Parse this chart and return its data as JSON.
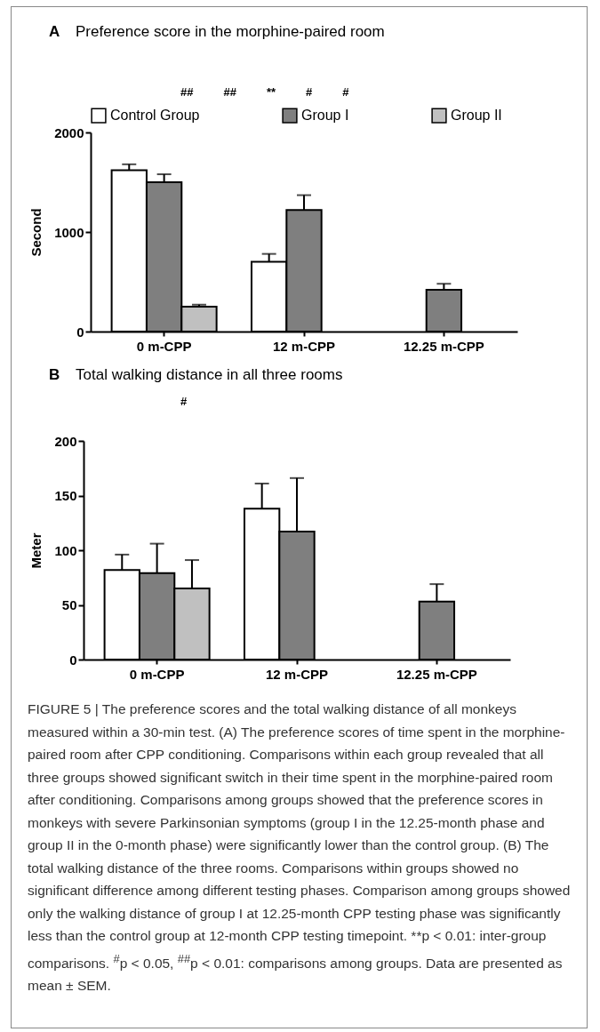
{
  "chart_data": [
    {
      "type": "bar",
      "title": "Preference score in the morphine-paired room",
      "ylabel": "Second",
      "categories": [
        "0 m-CPP",
        "12 m-CPP",
        "12.25 m-CPP"
      ],
      "series": [
        {
          "name": "Control Group",
          "color": "#ffffff",
          "values": [
            1620,
            700,
            null
          ],
          "errors": [
            60,
            80,
            null
          ]
        },
        {
          "name": "Group I",
          "color": "#7f7f7f",
          "values": [
            1500,
            1220,
            420
          ],
          "errors": [
            80,
            150,
            60
          ]
        },
        {
          "name": "Group II",
          "color": "#c0c0c0",
          "values": [
            250,
            null,
            null
          ],
          "errors": [
            20,
            null,
            null
          ]
        }
      ],
      "ylim": [
        0,
        2000
      ],
      "yticks": [
        0,
        1000,
        2000
      ],
      "legend": "top",
      "annotations": [
        "A",
        "##",
        "##",
        "**",
        "#",
        "#"
      ]
    },
    {
      "type": "bar",
      "title": "Total walking distance in all three rooms",
      "ylabel": "Meter",
      "categories": [
        "0 m-CPP",
        "12 m-CPP",
        "12.25 m-CPP"
      ],
      "series": [
        {
          "color": "#ffffff",
          "values": [
            82,
            138,
            null
          ],
          "errors": [
            14,
            23,
            null
          ]
        },
        {
          "color": "#7f7f7f",
          "values": [
            79,
            117,
            53
          ],
          "errors": [
            27,
            49,
            16
          ]
        },
        {
          "color": "#c0c0c0",
          "values": [
            65,
            null,
            null
          ],
          "errors": [
            26,
            null,
            null
          ]
        }
      ],
      "ylim": [
        0,
        200
      ],
      "yticks": [
        0,
        50,
        100,
        150,
        200
      ],
      "annotations": [
        "B",
        "#",
        "FIGURE 5 | The preference scores and the total walking distance of all monkeys measured within a 30-min test. (A) The preference scores of time spent in the morphine-paired room after CPP conditioning. Comparisons within each group revealed that all three groups showed significant switch in their time spent in the morphine-paired room after conditioning. Comparisons among groups showed that the preference scores in monkeys with severe Parkinsonian symptoms (group I in the 12.25-month phase and group II in the 0-month phase) were significantly lower than the control group. (B) The total walking distance of the three rooms. Comparisons within groups showed no significant difference among different testing phases. Comparison among groups showed only the walking distance of group I at 12.25-month CPP testing phase was significantly less than the control group at 12-month CPP testing timepoint. **p < 0.01: inter-group comparisons. $^{#}$p < 0.05, $^{##}$p < 0.01: comparisons among groups. Data are presented as mean ± SEM."
      ]
    }
  ]
}
